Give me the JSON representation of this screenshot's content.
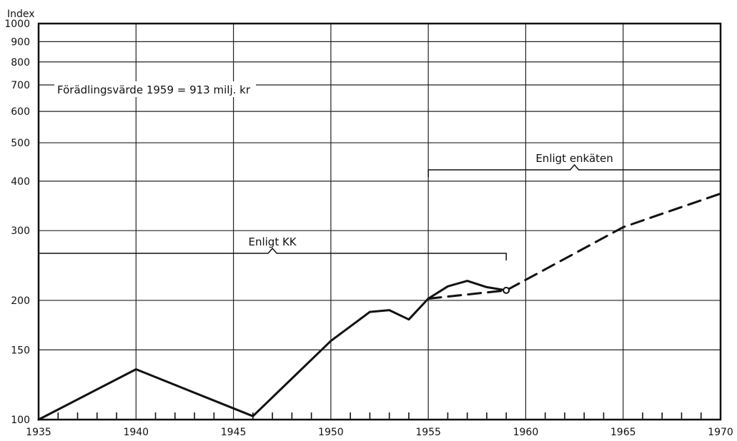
{
  "chart_data": {
    "type": "line",
    "title": "",
    "ylabel": "Index",
    "xlabel": "",
    "yscale": "log",
    "ylim": [
      100,
      1000
    ],
    "xlim": [
      1935,
      1970
    ],
    "grid": true,
    "x_ticks": [
      1935,
      1940,
      1945,
      1950,
      1955,
      1960,
      1965,
      1970
    ],
    "y_ticks": [
      100,
      150,
      200,
      300,
      400,
      500,
      600,
      700,
      800,
      900,
      1000
    ],
    "series": [
      {
        "style": "solid",
        "points": [
          [
            1935,
            100
          ],
          [
            1940,
            134
          ],
          [
            1946,
            102
          ],
          [
            1950,
            158
          ],
          [
            1952,
            187
          ],
          [
            1953,
            189
          ],
          [
            1954,
            179
          ],
          [
            1955,
            202
          ],
          [
            1956,
            217
          ],
          [
            1957,
            224
          ],
          [
            1958,
            216
          ],
          [
            1959,
            212
          ]
        ]
      },
      {
        "style": "dashed",
        "points": [
          [
            1955,
            202
          ],
          [
            1959,
            212
          ],
          [
            1965,
            306
          ],
          [
            1970,
            372
          ]
        ]
      }
    ],
    "annotations": [
      {
        "text": "Förädlingsvärde  1959 = 913  milj. kr"
      },
      {
        "text": "Enligt  KK",
        "span": [
          1935,
          1959
        ]
      },
      {
        "text": "Enligt  enkäten",
        "span": [
          1955,
          1970
        ]
      }
    ]
  }
}
